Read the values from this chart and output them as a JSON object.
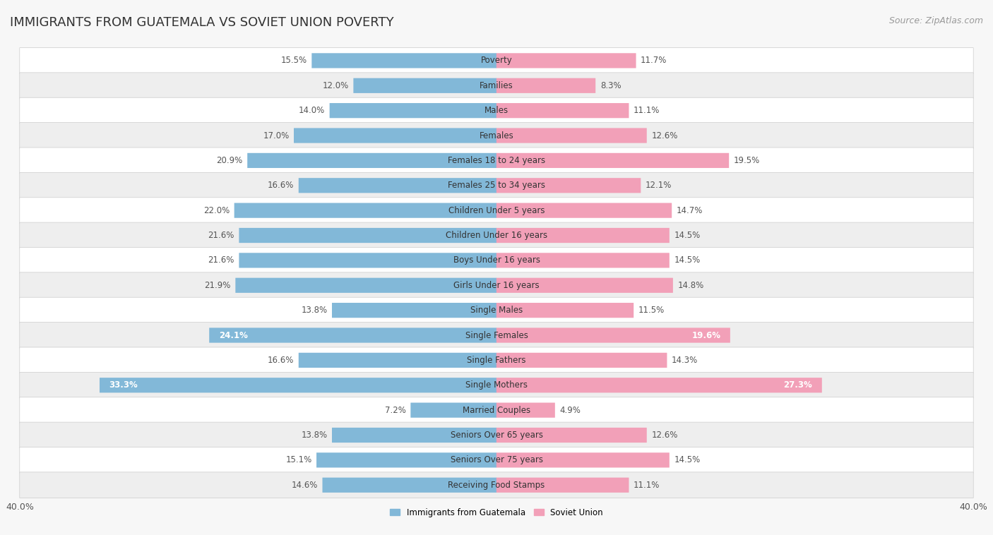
{
  "title": "IMMIGRANTS FROM GUATEMALA VS SOVIET UNION POVERTY",
  "source": "Source: ZipAtlas.com",
  "categories": [
    "Poverty",
    "Families",
    "Males",
    "Females",
    "Females 18 to 24 years",
    "Females 25 to 34 years",
    "Children Under 5 years",
    "Children Under 16 years",
    "Boys Under 16 years",
    "Girls Under 16 years",
    "Single Males",
    "Single Females",
    "Single Fathers",
    "Single Mothers",
    "Married Couples",
    "Seniors Over 65 years",
    "Seniors Over 75 years",
    "Receiving Food Stamps"
  ],
  "guatemala_values": [
    15.5,
    12.0,
    14.0,
    17.0,
    20.9,
    16.6,
    22.0,
    21.6,
    21.6,
    21.9,
    13.8,
    24.1,
    16.6,
    33.3,
    7.2,
    13.8,
    15.1,
    14.6
  ],
  "soviet_values": [
    11.7,
    8.3,
    11.1,
    12.6,
    19.5,
    12.1,
    14.7,
    14.5,
    14.5,
    14.8,
    11.5,
    19.6,
    14.3,
    27.3,
    4.9,
    12.6,
    14.5,
    11.1
  ],
  "guatemala_color": "#82b8d8",
  "soviet_color": "#f2a0b8",
  "highlight_rows": [
    11,
    13
  ],
  "xlim": 40.0,
  "bar_height": 0.58,
  "background_color": "#f7f7f7",
  "row_colors": [
    "#ffffff",
    "#eeeeee"
  ],
  "legend_guatemala": "Immigrants from Guatemala",
  "legend_soviet": "Soviet Union",
  "title_fontsize": 13,
  "label_fontsize": 8.5,
  "category_fontsize": 8.5,
  "axis_fontsize": 9,
  "source_fontsize": 9
}
